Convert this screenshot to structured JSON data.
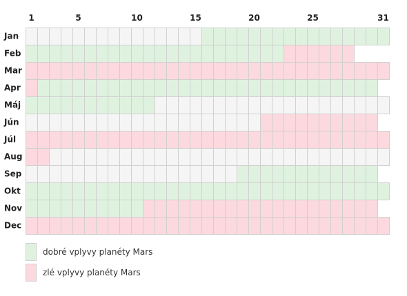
{
  "chart_data": {
    "type": "heatmap",
    "x_labels": [
      "1",
      "5",
      "10",
      "15",
      "20",
      "25",
      "31"
    ],
    "x_label_days": [
      1,
      5,
      10,
      15,
      20,
      25,
      31
    ],
    "months": [
      {
        "label": "Jan",
        "days": 31,
        "segments": [
          {
            "from": 1,
            "to": 15,
            "state": "neutral"
          },
          {
            "from": 16,
            "to": 31,
            "state": "good"
          }
        ]
      },
      {
        "label": "Feb",
        "days": 28,
        "segments": [
          {
            "from": 1,
            "to": 22,
            "state": "good"
          },
          {
            "from": 23,
            "to": 28,
            "state": "bad"
          }
        ]
      },
      {
        "label": "Mar",
        "days": 31,
        "segments": [
          {
            "from": 1,
            "to": 31,
            "state": "bad"
          }
        ]
      },
      {
        "label": "Apr",
        "days": 30,
        "segments": [
          {
            "from": 1,
            "to": 1,
            "state": "bad"
          },
          {
            "from": 2,
            "to": 30,
            "state": "good"
          }
        ]
      },
      {
        "label": "Máj",
        "days": 31,
        "segments": [
          {
            "from": 1,
            "to": 11,
            "state": "good"
          },
          {
            "from": 12,
            "to": 31,
            "state": "neutral"
          }
        ]
      },
      {
        "label": "Jún",
        "days": 30,
        "segments": [
          {
            "from": 1,
            "to": 20,
            "state": "neutral"
          },
          {
            "from": 21,
            "to": 30,
            "state": "bad"
          }
        ]
      },
      {
        "label": "Júl",
        "days": 31,
        "segments": [
          {
            "from": 1,
            "to": 31,
            "state": "bad"
          }
        ]
      },
      {
        "label": "Aug",
        "days": 31,
        "segments": [
          {
            "from": 1,
            "to": 2,
            "state": "bad"
          },
          {
            "from": 3,
            "to": 31,
            "state": "neutral"
          }
        ]
      },
      {
        "label": "Sep",
        "days": 30,
        "segments": [
          {
            "from": 1,
            "to": 18,
            "state": "neutral"
          },
          {
            "from": 19,
            "to": 30,
            "state": "good"
          }
        ]
      },
      {
        "label": "Okt",
        "days": 31,
        "segments": [
          {
            "from": 1,
            "to": 31,
            "state": "good"
          }
        ]
      },
      {
        "label": "Nov",
        "days": 30,
        "segments": [
          {
            "from": 1,
            "to": 10,
            "state": "good"
          },
          {
            "from": 11,
            "to": 30,
            "state": "bad"
          }
        ]
      },
      {
        "label": "Dec",
        "days": 31,
        "segments": [
          {
            "from": 1,
            "to": 31,
            "state": "bad"
          }
        ]
      }
    ],
    "colors": {
      "good": "#dff2df",
      "bad": "#fbd9de",
      "neutral": "#f5f5f5",
      "cell_border": "#d0d0d0"
    },
    "legend": [
      {
        "state": "good",
        "label": "dobré vplyvy planéty Mars"
      },
      {
        "state": "bad",
        "label": "zlé vplyvy planéty Mars"
      }
    ]
  }
}
